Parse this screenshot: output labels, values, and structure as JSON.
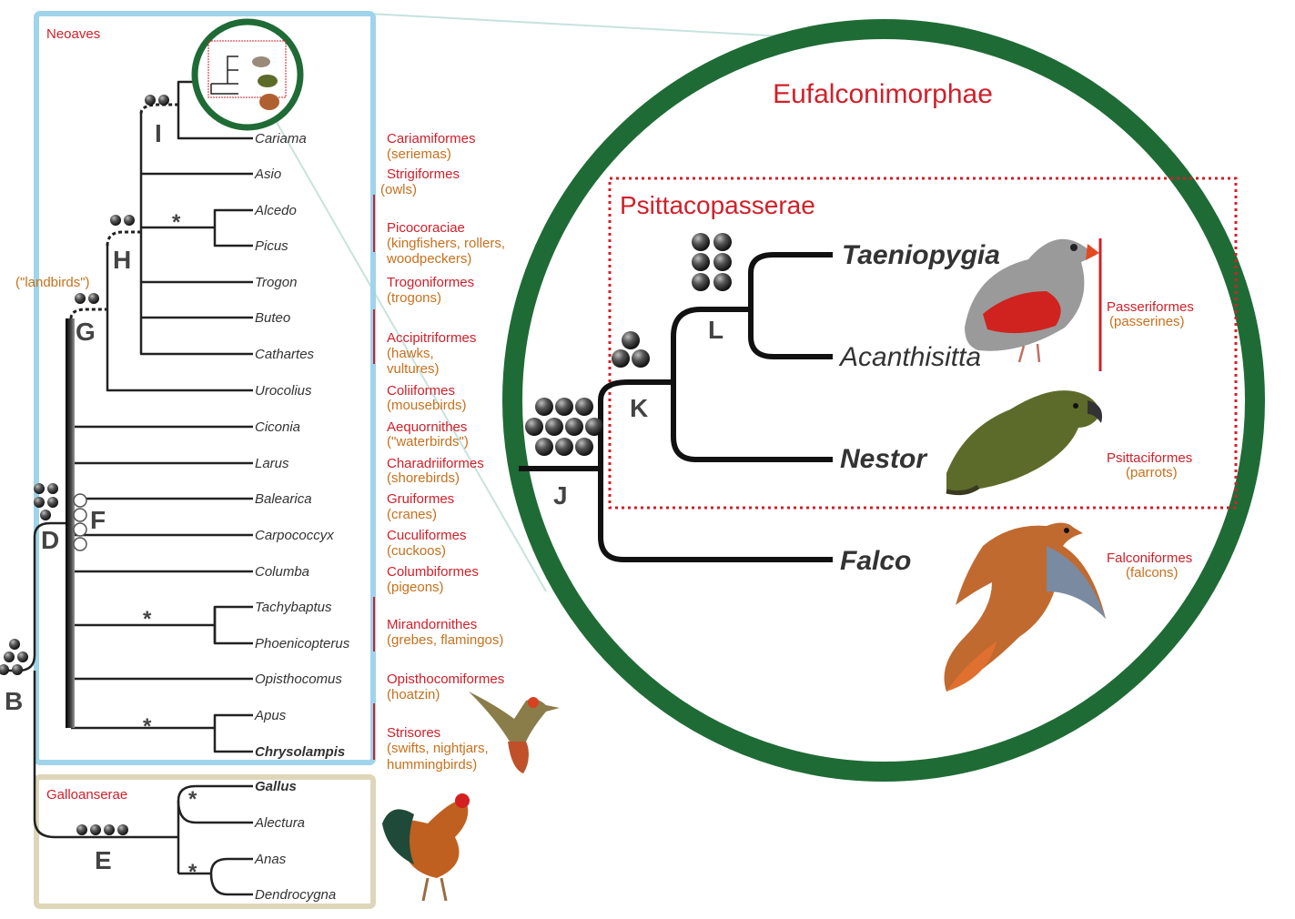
{
  "clades": {
    "neoaves": "Neoaves",
    "galloanserae": "Galloanserae",
    "landbirds": "(\"landbirds\")",
    "eufalconimorphae": "Eufalconimorphae",
    "psittacopasserae": "Psittacopasserae"
  },
  "node_letters": [
    "B",
    "D",
    "E",
    "F",
    "G",
    "H",
    "I",
    "J",
    "K",
    "L"
  ],
  "taxa": [
    "Cariama",
    "Asio",
    "Alcedo",
    "Picus",
    "Trogon",
    "Buteo",
    "Cathartes",
    "Urocolius",
    "Ciconia",
    "Larus",
    "Balearica",
    "Carpococcyx",
    "Columba",
    "Tachybaptus",
    "Phoenicopterus",
    "Opisthocomus",
    "Apus",
    "Chrysolampis",
    "Gallus",
    "Alectura",
    "Anas",
    "Dendrocygna"
  ],
  "orders": [
    {
      "name": "Cariamiformes",
      "common": [
        "(seriemas)"
      ]
    },
    {
      "name": "Strigiformes",
      "common": [
        "(owls)"
      ]
    },
    {
      "name": "Picocoraciae",
      "common": [
        "(kingfishers, rollers,",
        "woodpeckers)"
      ]
    },
    {
      "name": "Trogoniformes",
      "common": [
        "(trogons)"
      ]
    },
    {
      "name": "Accipitriformes",
      "common": [
        "(hawks,",
        "vultures)"
      ]
    },
    {
      "name": "Coliiformes",
      "common": [
        "(mousebirds)"
      ]
    },
    {
      "name": "Aequornithes",
      "common": [
        "(\"waterbirds\")"
      ]
    },
    {
      "name": "Charadriiformes",
      "common": [
        "(shorebirds)"
      ]
    },
    {
      "name": "Gruiformes",
      "common": [
        "(cranes)"
      ]
    },
    {
      "name": "Cuculiformes",
      "common": [
        "(cuckoos)"
      ]
    },
    {
      "name": "Columbiformes",
      "common": [
        "(pigeons)"
      ]
    },
    {
      "name": "Mirandornithes",
      "common": [
        "(grebes, flamingos)"
      ]
    },
    {
      "name": "Opisthocomiformes",
      "common": [
        "(hoatzin)"
      ]
    },
    {
      "name": "Strisores",
      "common": [
        "(swifts, nightjars,",
        "hummingbirds)"
      ]
    }
  ],
  "zoom_taxa": [
    "Taeniopygia",
    "Acanthisitta",
    "Nestor",
    "Falco"
  ],
  "zoom_orders": [
    {
      "name": "Passeriformes",
      "common": "(passerines)"
    },
    {
      "name": "Psittaciformes",
      "common": "(parrots)"
    },
    {
      "name": "Falconiformes",
      "common": "(falcons)"
    }
  ],
  "star_symbol": "*",
  "colors": {
    "clade_red": "#d0202a",
    "common_orange": "#c8701c",
    "neoaves_border": "#9fd4ea",
    "galloanserae_border": "#ddd6b8",
    "circle_green": "#1f6b35",
    "branch": "#222222"
  }
}
